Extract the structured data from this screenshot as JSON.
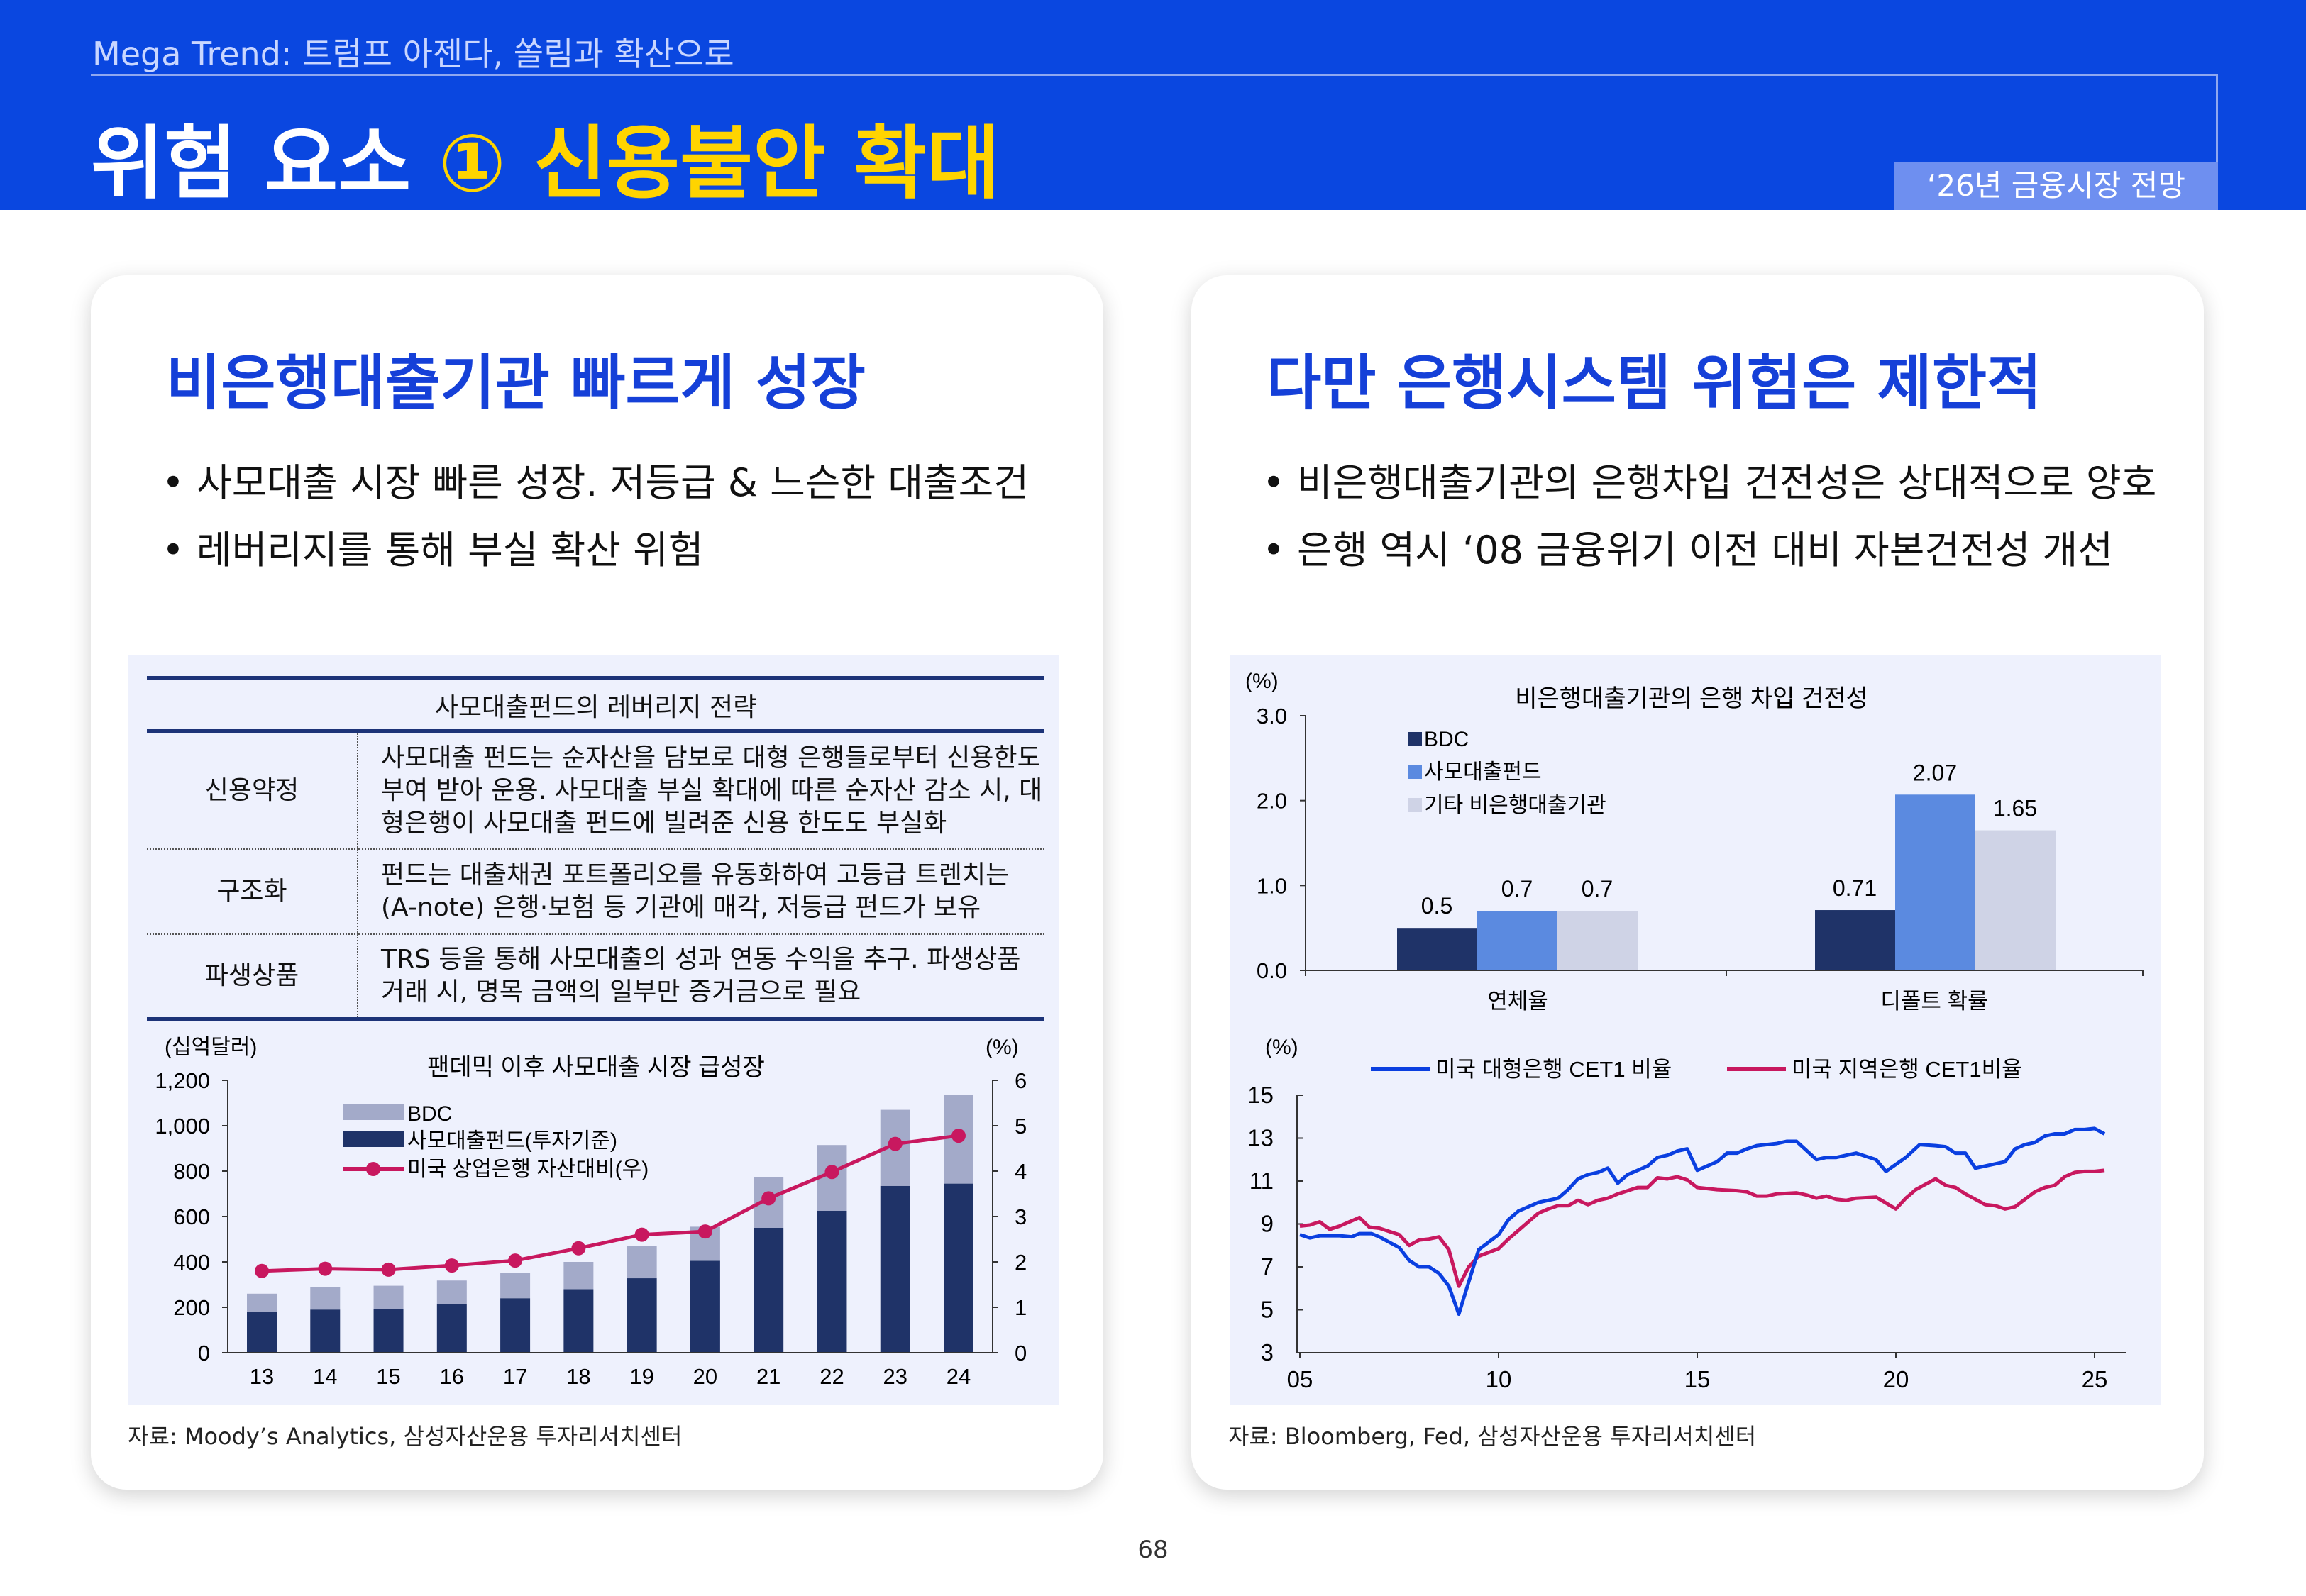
{
  "header": {
    "subtitle": "Mega Trend: 트럼프 아젠다, 쏠림과 확산으로",
    "title_main": "위험 요소 ",
    "title_highlight": "① 신용불안 확대",
    "badge": "‘26년 금융시장 전망"
  },
  "left": {
    "heading": "비은행대출기관 빠르게 성장",
    "bullets": [
      "• 사모대출 시장 빠른 성장. 저등급 & 느슨한 대출조건",
      "• 레버리지를 통해 부실 확산 위험"
    ],
    "table": {
      "title": "사모대출펀드의 레버리지 전략",
      "rows": [
        {
          "key": "신용약정",
          "value": "사모대출 펀드는 순자산을 담보로 대형 은행들로부터 신용한도 부여 받아 운용. 사모대출 부실 확대에 따른 순자산 감소 시, 대형은행이 사모대출 펀드에 빌려준 신용 한도도 부실화"
        },
        {
          "key": "구조화",
          "value": "펀드는 대출채권 포트폴리오를 유동화하여  고등급 트렌치는 (A-note) 은행·보험 등 기관에 매각, 저등급 펀드가 보유"
        },
        {
          "key": "파생상품",
          "value": "TRS 등을 통해 사모대출의 성과 연동 수익을 추구. 파생상품 거래 시, 명목 금액의 일부만 증거금으로 필요"
        }
      ]
    },
    "source": "자료: Moody’s Analytics, 삼성자산운용 투자리서치센터"
  },
  "right": {
    "heading": "다만 은행시스템 위험은 제한적",
    "bullets": [
      "• 비은행대출기관의 은행차입 건전성은 상대적으로 양호",
      "• 은행 역시 ‘08 금융위기 이전 대비 자본건전성 개선"
    ],
    "source": "자료: Bloomberg, Fed, 삼성자산운용 투자리서치센터"
  },
  "page_number": "68",
  "chart_data": [
    {
      "type": "bar",
      "title": "팬데믹 이후 사모대출 시장  급성장",
      "ylabel": "(십억달러)",
      "y2label": "(%)",
      "categories": [
        "13",
        "14",
        "15",
        "16",
        "17",
        "18",
        "19",
        "20",
        "21",
        "22",
        "23",
        "24"
      ],
      "ylim": [
        0,
        1200
      ],
      "yticks": [
        "0",
        "200",
        "400",
        "600",
        "800",
        "1,000",
        "1,200"
      ],
      "y2lim": [
        0,
        6
      ],
      "y2ticks": [
        "0",
        "1",
        "2",
        "3",
        "4",
        "5",
        "6"
      ],
      "stacked": true,
      "legend": "top-left",
      "series": [
        {
          "name": "사모대출펀드(투자기준)",
          "color": "#1f3368",
          "values": [
            180,
            190,
            192,
            215,
            240,
            280,
            328,
            405,
            550,
            625,
            735,
            745
          ]
        },
        {
          "name": "BDC",
          "color": "#a3aac9",
          "values": [
            80,
            100,
            103,
            103,
            110,
            120,
            142,
            150,
            225,
            290,
            335,
            390
          ]
        },
        {
          "name": "미국 상업은행 자산대비(우)",
          "type": "line",
          "axis": "right",
          "color": "#c8185f",
          "values": [
            1.8,
            1.85,
            1.83,
            1.92,
            2.03,
            2.3,
            2.6,
            2.67,
            3.4,
            3.98,
            4.6,
            4.78
          ]
        }
      ]
    },
    {
      "type": "bar",
      "title": "비은행대출기관의 은행 차입 건전성",
      "ylabel": "(%)",
      "categories": [
        "연체율",
        "디폴트 확률"
      ],
      "ylim": [
        0,
        3
      ],
      "yticks": [
        "0.0",
        "1.0",
        "2.0",
        "3.0"
      ],
      "legend": "top-left",
      "series": [
        {
          "name": "BDC",
          "color": "#1f3368",
          "values": [
            0.5,
            0.71
          ]
        },
        {
          "name": "사모대출펀드",
          "color": "#5b8ae0",
          "values": [
            0.7,
            2.07
          ]
        },
        {
          "name": "기타 비은행대출기관",
          "color": "#cfd3e6",
          "values": [
            0.7,
            1.65
          ]
        }
      ],
      "labels": [
        [
          "0.5",
          "0.71"
        ],
        [
          "0.7",
          "2.07"
        ],
        [
          "0.7",
          "1.65"
        ]
      ]
    },
    {
      "type": "line",
      "ylabel": "(%)",
      "ylim": [
        3,
        15
      ],
      "yticks": [
        "3",
        "5",
        "7",
        "9",
        "11",
        "13",
        "15"
      ],
      "xlim": [
        2005,
        2025.6
      ],
      "xticks": [
        "05",
        "10",
        "15",
        "20",
        "25"
      ],
      "legend": "top",
      "series": [
        {
          "name": "미국 대형은행 CET1 비율",
          "color": "#0a3fe0",
          "x": [
            2005,
            2005.25,
            2005.5,
            2006,
            2006.3,
            2006.5,
            2006.8,
            2007,
            2007.5,
            2007.75,
            2008,
            2008.25,
            2008.5,
            2008.75,
            2009,
            2009.5,
            2010,
            2010.25,
            2010.5,
            2010.75,
            2011,
            2011.25,
            2011.5,
            2011.75,
            2012,
            2012.25,
            2012.5,
            2012.75,
            2013,
            2013.25,
            2013.5,
            2013.75,
            2014,
            2014.25,
            2014.5,
            2014.75,
            2015,
            2015.25,
            2015.5,
            2015.75,
            2016,
            2016.25,
            2016.5,
            2016.75,
            2017,
            2017.25,
            2017.5,
            2018,
            2018.25,
            2018.5,
            2018.75,
            2019,
            2019.25,
            2019.5,
            2019.75,
            2020.25,
            2020.6,
            2021,
            2021.25,
            2021.5,
            2021.75,
            2022,
            2022.25,
            2022.75,
            2023,
            2023.25,
            2023.5,
            2023.75,
            2024,
            2024.25,
            2024.5,
            2024.75,
            2025,
            2025.25
          ],
          "y": [
            8.5,
            8.35,
            8.45,
            8.45,
            8.4,
            8.55,
            8.55,
            8.4,
            7.9,
            7.3,
            7.0,
            7.0,
            6.7,
            6.1,
            4.8,
            7.8,
            8.5,
            9.2,
            9.6,
            9.8,
            10.0,
            10.1,
            10.2,
            10.6,
            11.1,
            11.3,
            11.4,
            11.6,
            10.9,
            11.3,
            11.5,
            11.7,
            12.1,
            12.2,
            12.4,
            12.5,
            11.5,
            11.7,
            11.9,
            12.3,
            12.3,
            12.5,
            12.65,
            12.7,
            12.75,
            12.85,
            12.85,
            12.0,
            12.1,
            12.1,
            12.2,
            12.3,
            12.15,
            12.0,
            11.45,
            12.1,
            12.7,
            12.65,
            12.6,
            12.3,
            12.3,
            11.6,
            11.7,
            11.9,
            12.5,
            12.7,
            12.8,
            13.1,
            13.2,
            13.2,
            13.4,
            13.4,
            13.45,
            13.2
          ]
        },
        {
          "name": "미국 지역은행 CET1비율",
          "color": "#c8185f",
          "x": [
            2005,
            2005.25,
            2005.5,
            2005.75,
            2006,
            2006.25,
            2006.5,
            2006.75,
            2007,
            2007.5,
            2007.75,
            2008,
            2008.25,
            2008.5,
            2008.75,
            2009,
            2009.25,
            2009.5,
            2010,
            2010.25,
            2010.5,
            2010.75,
            2011,
            2011.25,
            2011.5,
            2011.75,
            2012,
            2012.25,
            2012.5,
            2012.75,
            2013,
            2013.25,
            2013.5,
            2013.75,
            2014,
            2014.25,
            2014.5,
            2014.75,
            2015,
            2015.5,
            2016,
            2016.25,
            2016.5,
            2016.75,
            2017,
            2017.5,
            2017.75,
            2018,
            2018.25,
            2018.5,
            2018.75,
            2019,
            2019.5,
            2020,
            2020.25,
            2020.5,
            2021,
            2021.25,
            2021.5,
            2021.75,
            2022,
            2022.25,
            2022.5,
            2022.75,
            2023,
            2023.5,
            2023.75,
            2024,
            2024.25,
            2024.5,
            2024.75,
            2025,
            2025.25
          ],
          "y": [
            8.9,
            8.95,
            9.1,
            8.75,
            8.9,
            9.1,
            9.3,
            8.85,
            8.8,
            8.5,
            8.0,
            8.25,
            8.3,
            8.4,
            7.8,
            6.1,
            7.0,
            7.5,
            7.85,
            8.3,
            8.7,
            9.1,
            9.5,
            9.7,
            9.85,
            9.85,
            10.1,
            9.9,
            10.1,
            10.2,
            10.4,
            10.55,
            10.7,
            10.7,
            11.15,
            11.1,
            11.2,
            11.05,
            10.7,
            10.6,
            10.55,
            10.5,
            10.3,
            10.3,
            10.4,
            10.45,
            10.35,
            10.2,
            10.3,
            10.15,
            10.1,
            10.2,
            10.25,
            9.7,
            10.2,
            10.6,
            11.1,
            10.8,
            10.7,
            10.4,
            10.15,
            9.9,
            9.85,
            9.7,
            9.8,
            10.5,
            10.7,
            10.8,
            11.2,
            11.4,
            11.45,
            11.45,
            11.5
          ]
        }
      ]
    }
  ]
}
